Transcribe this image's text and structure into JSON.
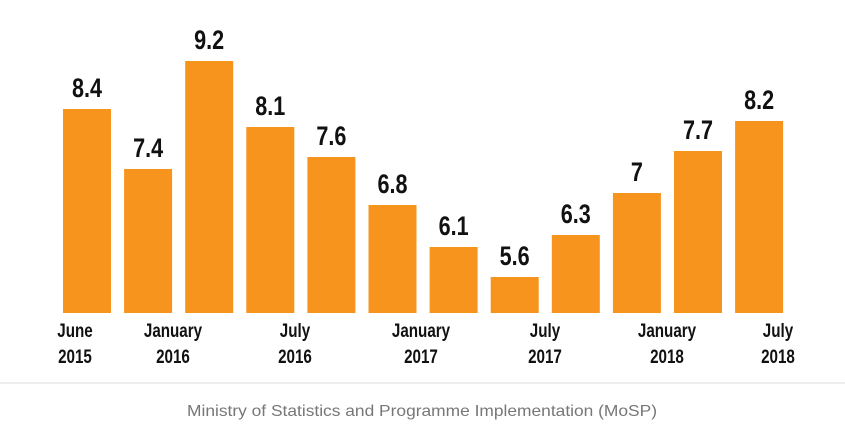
{
  "chart_data": {
    "type": "bar",
    "values": [
      8.4,
      7.4,
      9.2,
      8.1,
      7.6,
      6.8,
      6.1,
      5.6,
      6.3,
      7,
      7.7,
      8.2
    ],
    "color": "#f7941d",
    "ylim": [
      5,
      9.6
    ],
    "x_labels": [
      [
        "June",
        "2015"
      ],
      [
        "January",
        "2016"
      ],
      [
        "July",
        "2016"
      ],
      [
        "January",
        "2017"
      ],
      [
        "July",
        "2017"
      ],
      [
        "January",
        "2018"
      ],
      [
        "July",
        "2018"
      ]
    ],
    "source": "Ministry of Statistics and Programme Implementation (MoSP)"
  }
}
